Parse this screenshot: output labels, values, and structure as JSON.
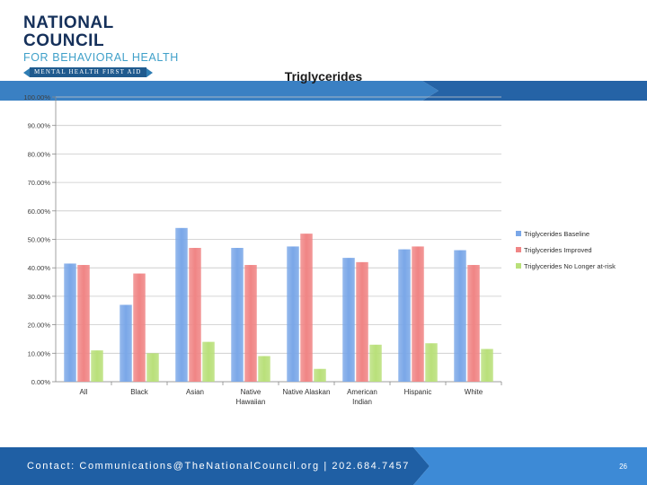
{
  "logo": {
    "line1": "NATIONAL COUNCIL",
    "line2": "FOR BEHAVIORAL HEALTH",
    "banner": "MENTAL HEALTH FIRST AID"
  },
  "colors": {
    "baseline": "#7aa7e8",
    "improved": "#f08585",
    "no_longer": "#b9e07a",
    "header_band": "#3a80c3",
    "footer_dark": "#1f5fa4",
    "footer_light": "#3d8ad6"
  },
  "chart_data": {
    "type": "bar",
    "title": "Triglycerides",
    "categories": [
      "All",
      "Black",
      "Asian",
      "Native Hawaiian",
      "Native Alaskan",
      "American Indian",
      "Hispanic",
      "White"
    ],
    "category_lines": [
      [
        "All"
      ],
      [
        "Black"
      ],
      [
        "Asian"
      ],
      [
        "Native",
        "Hawaiian"
      ],
      [
        "Native Alaskan"
      ],
      [
        "American",
        "Indian"
      ],
      [
        "Hispanic"
      ],
      [
        "White"
      ]
    ],
    "series": [
      {
        "name": "Triglycerides Baseline",
        "values": [
          41.5,
          27,
          54,
          47,
          47.5,
          43.5,
          46.5,
          46.2
        ]
      },
      {
        "name": "Triglycerides Improved",
        "values": [
          41,
          38,
          47,
          41,
          52,
          42,
          47.5,
          41
        ]
      },
      {
        "name": "Triglycerides No Longer at-risk",
        "values": [
          11,
          10,
          14,
          9,
          4.5,
          13,
          13.5,
          11.5
        ]
      }
    ],
    "ylim": [
      0,
      100
    ],
    "yticks": [
      "0.00%",
      "10.00%",
      "20.00%",
      "30.00%",
      "40.00%",
      "50.00%",
      "60.00%",
      "70.00%",
      "80.00%",
      "90.00%",
      "100.00%"
    ],
    "grid": true,
    "legend": "right"
  },
  "footer": {
    "contact": "Contact: Communications@TheNationalCouncil.org | 202.684.7457",
    "page": "26"
  }
}
